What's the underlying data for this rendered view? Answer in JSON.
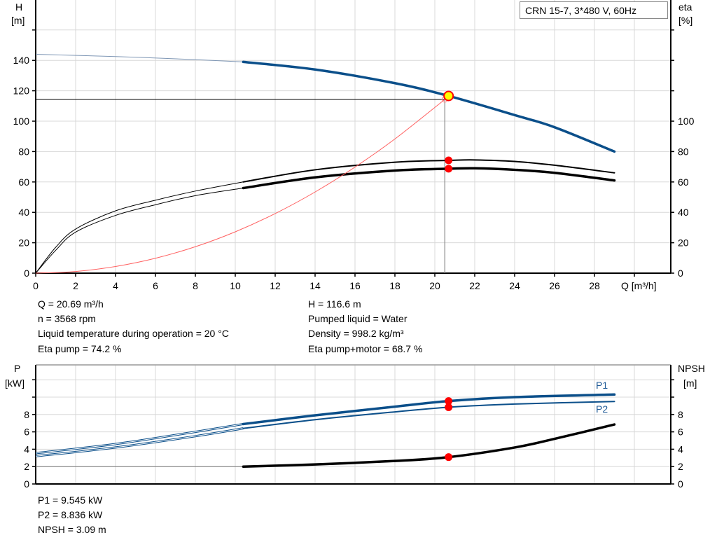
{
  "header": {
    "pump_label": "CRN 15-7, 3*480 V, 60Hz"
  },
  "colors": {
    "head": "#0b4f8a",
    "efficiency": "#000000",
    "system_curve": "#ff6060",
    "marker": "#ff0000",
    "operating_point_fill": "#ffff00",
    "grid": "#d8d8d8"
  },
  "operating_info": {
    "left": [
      "Q = 20.69 m³/h",
      "n = 3568 rpm",
      "Liquid temperature during operation = 20 °C",
      "Eta pump = 74.2 %"
    ],
    "right": [
      "H = 116.6 m",
      "Pumped liquid = Water",
      "Density = 998.2 kg/m³",
      "Eta pump+motor = 68.7 %"
    ]
  },
  "power_info": [
    "P1 = 9.545 kW",
    "P2 = 8.836 kW",
    "NPSH = 3.09 m"
  ],
  "chart_data": [
    {
      "type": "line",
      "ylabel": "H",
      "ylabel_unit": "[m]",
      "y2label": "eta",
      "y2label_unit": "[%]",
      "xlabel": "Q [m³/h]",
      "xlim": [
        0,
        30
      ],
      "ylim": [
        0,
        180
      ],
      "y2lim": [
        0,
        180
      ],
      "grid": true,
      "xticks": [
        0,
        2,
        4,
        6,
        8,
        10,
        12,
        14,
        16,
        18,
        20,
        22,
        24,
        26,
        28
      ],
      "yticks": [
        0,
        20,
        40,
        60,
        80,
        100,
        120,
        140
      ],
      "y2ticks": [
        0,
        20,
        40,
        60,
        80,
        100
      ],
      "emphasized_from_q": 10.4,
      "series": [
        {
          "axis": "left",
          "color": "#0b4f8a",
          "x": [
            0,
            4,
            8,
            10.4,
            14,
            18,
            20.69,
            24,
            26,
            29
          ],
          "y": [
            144,
            142.5,
            140.5,
            139,
            134,
            125,
            116.6,
            104,
            96,
            80
          ]
        },
        {
          "axis": "right",
          "color": "#000000",
          "x": [
            0,
            1,
            2,
            4,
            6,
            8,
            10.4,
            14,
            18,
            20.69,
            22,
            24,
            26,
            29
          ],
          "y": [
            0,
            17,
            29,
            41,
            48,
            54,
            60,
            68,
            73,
            74.2,
            74.5,
            73.5,
            71,
            66
          ]
        },
        {
          "axis": "right",
          "color": "#000000",
          "x": [
            0,
            1,
            2,
            4,
            6,
            8,
            10.4,
            14,
            18,
            20.69,
            22,
            24,
            26,
            29
          ],
          "y": [
            0,
            15,
            27,
            38,
            45,
            51,
            56,
            63,
            67.5,
            68.7,
            69,
            68,
            66,
            61
          ]
        },
        {
          "axis": "left",
          "color": "#ff6060",
          "system_curve": true,
          "x": [
            0,
            2,
            4,
            6,
            8,
            10,
            12,
            14,
            16,
            18,
            20.5
          ],
          "y": [
            0,
            1.1,
            4.4,
            9.8,
            17.4,
            27.2,
            39.2,
            53.4,
            69.8,
            88.3,
            114.3
          ]
        }
      ],
      "duty_point": {
        "q": 20.5,
        "h": 114.3
      },
      "operating_points": [
        {
          "q": 20.69,
          "value": 116.6,
          "axis": "left",
          "style": "yellow"
        },
        {
          "q": 20.69,
          "value": 74.2,
          "axis": "right",
          "style": "red"
        },
        {
          "q": 20.69,
          "value": 68.7,
          "axis": "right",
          "style": "red"
        }
      ]
    },
    {
      "type": "line",
      "ylabel": "P",
      "ylabel_unit": "[kW]",
      "y2label": "NPSH",
      "y2label_unit": "[m]",
      "xlim": [
        0,
        30
      ],
      "ylim": [
        0,
        13.5
      ],
      "y2lim": [
        0,
        13.5
      ],
      "grid": true,
      "yticks": [
        0,
        2,
        4,
        6,
        8
      ],
      "y2ticks": [
        0,
        2,
        4,
        6,
        8
      ],
      "emphasized_from_q": 10.4,
      "series": [
        {
          "name": "P1",
          "axis": "left",
          "color": "#0b4f8a",
          "x": [
            0,
            4,
            8,
            10.4,
            14,
            18,
            20.69,
            24,
            29
          ],
          "y": [
            3.55,
            4.6,
            6,
            6.9,
            7.9,
            8.9,
            9.545,
            10,
            10.3
          ]
        },
        {
          "name": "P2",
          "axis": "left",
          "color": "#0b4f8a",
          "x": [
            0,
            4,
            8,
            10.4,
            14,
            18,
            20.69,
            24,
            29
          ],
          "y": [
            3.2,
            4.2,
            5.5,
            6.4,
            7.4,
            8.3,
            8.836,
            9.2,
            9.5
          ]
        },
        {
          "axis": "right",
          "color": "#000000",
          "x": [
            0,
            10.4,
            14,
            18,
            20.69,
            24,
            26,
            29
          ],
          "y": [
            2,
            2,
            2.25,
            2.65,
            3.09,
            4.2,
            5.2,
            6.85
          ]
        }
      ],
      "operating_points": [
        {
          "q": 20.69,
          "value": 9.545,
          "axis": "left",
          "style": "red"
        },
        {
          "q": 20.69,
          "value": 8.836,
          "axis": "left",
          "style": "red"
        },
        {
          "q": 20.69,
          "value": 3.09,
          "axis": "right",
          "style": "red"
        }
      ]
    }
  ]
}
